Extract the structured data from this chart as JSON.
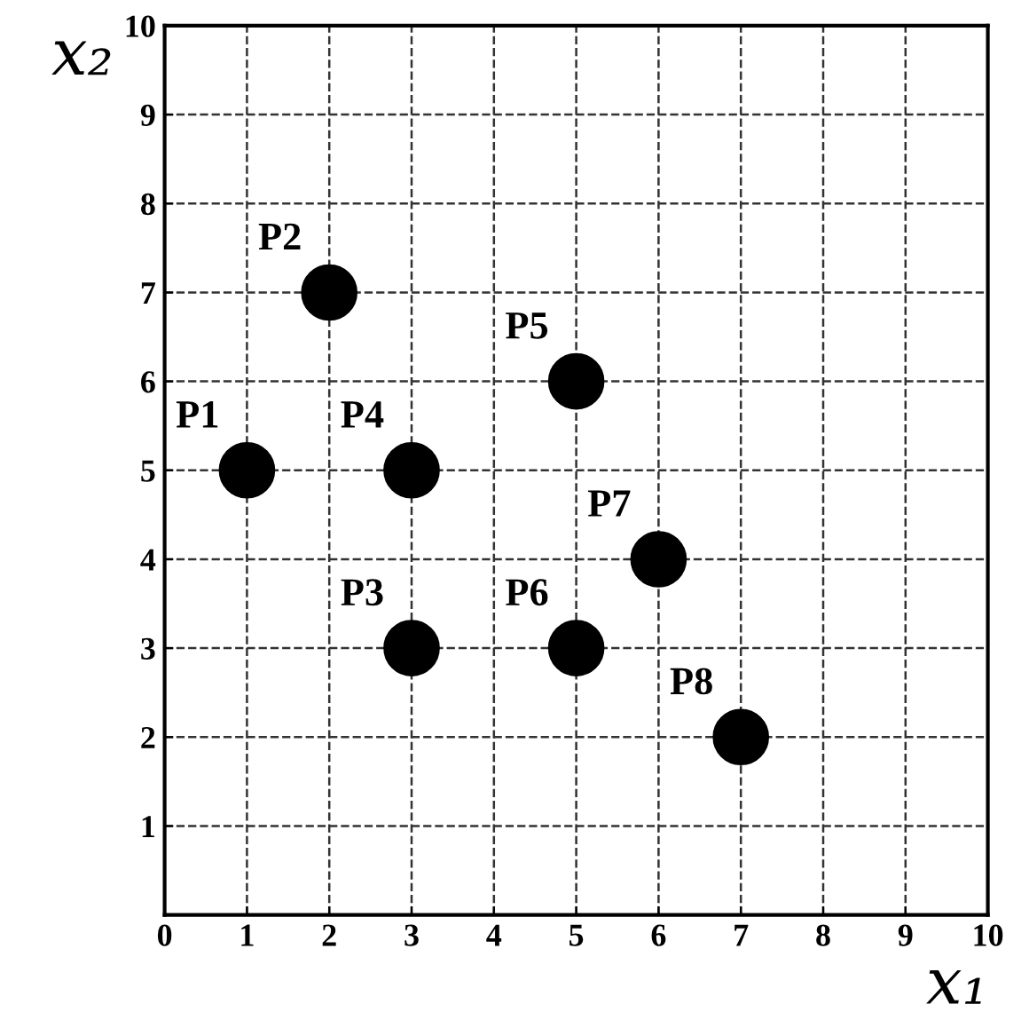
{
  "chart_data": {
    "type": "scatter",
    "xlabel": "x₁",
    "ylabel": "x₂",
    "x": [
      1,
      2,
      3,
      3,
      5,
      5,
      6,
      7
    ],
    "series": [
      {
        "color": "#000000",
        "values": [
          5,
          7,
          3,
          5,
          6,
          3,
          4,
          2
        ]
      }
    ],
    "annotations": [
      {
        "text": "P1",
        "x": 1,
        "y": 5
      },
      {
        "text": "P2",
        "x": 2,
        "y": 7
      },
      {
        "text": "P3",
        "x": 3,
        "y": 3
      },
      {
        "text": "P4",
        "x": 3,
        "y": 5
      },
      {
        "text": "P5",
        "x": 5,
        "y": 6
      },
      {
        "text": "P6",
        "x": 5,
        "y": 3
      },
      {
        "text": "P7",
        "x": 6,
        "y": 4
      },
      {
        "text": "P8",
        "x": 7,
        "y": 2
      }
    ],
    "xlim": [
      0,
      10
    ],
    "ylim": [
      0,
      10
    ],
    "xticks": [
      0,
      1,
      2,
      3,
      4,
      5,
      6,
      7,
      8,
      9,
      10
    ],
    "yticks": [
      1,
      2,
      3,
      4,
      5,
      6,
      7,
      8,
      9,
      10
    ],
    "grid": true,
    "marker": "circle",
    "line_style": "dashed"
  }
}
